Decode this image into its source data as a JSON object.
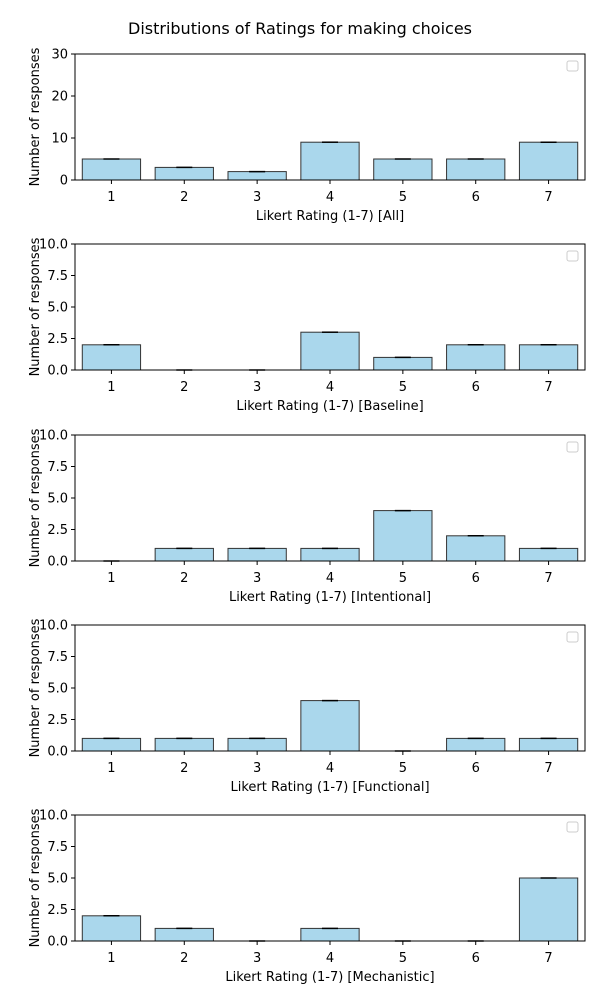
{
  "title": "Distributions of Ratings for making choices",
  "colors": {
    "bar_fill": "#aad7ec",
    "bar_edge": "#333333"
  },
  "chart_data": [
    {
      "type": "bar",
      "categories": [
        "1",
        "2",
        "3",
        "4",
        "5",
        "6",
        "7"
      ],
      "values": [
        5,
        3,
        2,
        9,
        5,
        5,
        9
      ],
      "xlabel": "Likert Rating (1-7) [All]",
      "ylabel": "Number of responses",
      "ylim": [
        0,
        30
      ],
      "yticks": [
        "0",
        "10",
        "20",
        "30"
      ],
      "legend": "top-right (empty)"
    },
    {
      "type": "bar",
      "categories": [
        "1",
        "2",
        "3",
        "4",
        "5",
        "6",
        "7"
      ],
      "values": [
        2,
        0,
        0,
        3,
        1,
        2,
        2
      ],
      "xlabel": "Likert Rating (1-7) [Baseline]",
      "ylabel": "Number of responses",
      "ylim": [
        0,
        10
      ],
      "yticks": [
        "0.0",
        "2.5",
        "5.0",
        "7.5",
        "10.0"
      ],
      "legend": "top-right (empty)"
    },
    {
      "type": "bar",
      "categories": [
        "1",
        "2",
        "3",
        "4",
        "5",
        "6",
        "7"
      ],
      "values": [
        0,
        1,
        1,
        1,
        4,
        2,
        1
      ],
      "xlabel": "Likert Rating (1-7) [Intentional]",
      "ylabel": "Number of responses",
      "ylim": [
        0,
        10
      ],
      "yticks": [
        "0.0",
        "2.5",
        "5.0",
        "7.5",
        "10.0"
      ],
      "legend": "top-right (empty)"
    },
    {
      "type": "bar",
      "categories": [
        "1",
        "2",
        "3",
        "4",
        "5",
        "6",
        "7"
      ],
      "values": [
        1,
        1,
        1,
        4,
        0,
        1,
        1
      ],
      "xlabel": "Likert Rating (1-7) [Functional]",
      "ylabel": "Number of responses",
      "ylim": [
        0,
        10
      ],
      "yticks": [
        "0.0",
        "2.5",
        "5.0",
        "7.5",
        "10.0"
      ],
      "legend": "top-right (empty)"
    },
    {
      "type": "bar",
      "categories": [
        "1",
        "2",
        "3",
        "4",
        "5",
        "6",
        "7"
      ],
      "values": [
        2,
        1,
        0,
        1,
        0,
        0,
        5
      ],
      "xlabel": "Likert Rating (1-7) [Mechanistic]",
      "ylabel": "Number of responses",
      "ylim": [
        0,
        10
      ],
      "yticks": [
        "0.0",
        "2.5",
        "5.0",
        "7.5",
        "10.0"
      ],
      "legend": "top-right (empty)"
    }
  ]
}
